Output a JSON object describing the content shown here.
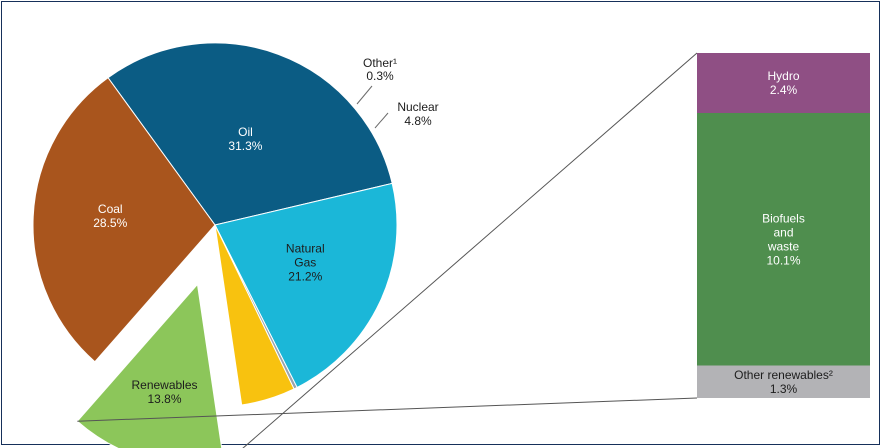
{
  "chart_data": [
    {
      "type": "pie",
      "title": "",
      "slices": [
        {
          "label": "Oil",
          "value": 31.3,
          "value_text": "31.3%",
          "color": "#0b5c84"
        },
        {
          "label": "Natural\nGas",
          "value": 21.2,
          "value_text": "21.2%",
          "color": "#1bb7d8"
        },
        {
          "label": "Other¹",
          "value": 0.3,
          "value_text": "0.3%",
          "color": "#9aa4ac"
        },
        {
          "label": "Nuclear",
          "value": 4.8,
          "value_text": "4.8%",
          "color": "#f8c20f"
        },
        {
          "label": "Renewables",
          "value": 13.8,
          "value_text": "13.8%",
          "color": "#8cc65a",
          "exploded": true
        },
        {
          "label": "Coal",
          "value": 28.5,
          "value_text": "28.5%",
          "color": "#a9551d"
        }
      ],
      "legend": "none"
    },
    {
      "type": "bar",
      "stacked": true,
      "breakdown_of": "Renewables",
      "segments": [
        {
          "label": "Hydro",
          "value": 2.4,
          "value_text": "2.4%",
          "color": "#8f4f84"
        },
        {
          "label": "Biofuels\nand\nwaste",
          "value": 10.1,
          "value_text": "10.1%",
          "color": "#4f8e4e"
        },
        {
          "label": "Other renewables²",
          "value": 1.3,
          "value_text": "1.3%",
          "color": "#b3b3b6"
        }
      ]
    }
  ]
}
